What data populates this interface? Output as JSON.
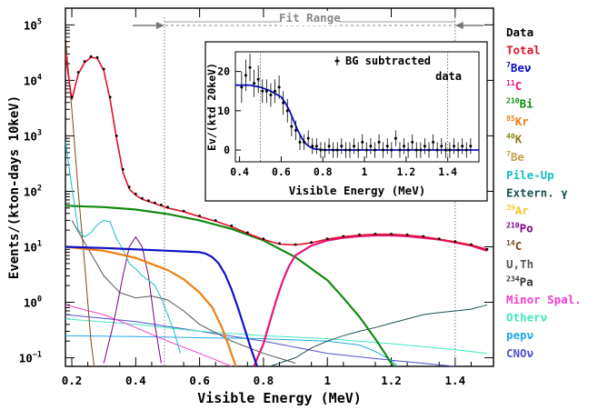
{
  "chart_data": [
    {
      "type": "line",
      "title": "",
      "xlabel": "Visible Energy (MeV)",
      "ylabel": "Events/(kton-days 10keV)",
      "xlim": [
        0.18,
        1.52
      ],
      "ylim": [
        0.07,
        200000
      ],
      "y_scale": "log",
      "grid": false,
      "legend_position": "right-outside",
      "x_ticks": [
        {
          "v": 0.2,
          "t": "0.2"
        },
        {
          "v": 0.4,
          "t": "0.4"
        },
        {
          "v": 0.6,
          "t": "0.6"
        },
        {
          "v": 0.8,
          "t": "0.8"
        },
        {
          "v": 1.0,
          "t": "1"
        },
        {
          "v": 1.2,
          "t": "1.2"
        },
        {
          "v": 1.4,
          "t": "1.4"
        }
      ],
      "y_ticks": [
        {
          "v": 0.1,
          "b": "10",
          "e": "−1"
        },
        {
          "v": 1,
          "b": "10",
          "e": "0"
        },
        {
          "v": 10,
          "b": "10",
          "e": "1"
        },
        {
          "v": 100,
          "b": "10",
          "e": "2"
        },
        {
          "v": 1000,
          "b": "10",
          "e": "3"
        },
        {
          "v": 10000,
          "b": "10",
          "e": "4"
        },
        {
          "v": 100000,
          "b": "10",
          "e": "5"
        }
      ],
      "annotations": [
        {
          "text": "Fit Range",
          "x_range": [
            0.49,
            1.4
          ]
        }
      ],
      "series": [
        {
          "name": "Data",
          "color": "#000000",
          "kind": "points",
          "x": [
            0.18,
            0.2,
            0.22,
            0.24,
            0.26,
            0.28,
            0.3,
            0.32,
            0.34,
            0.36,
            0.38,
            0.4,
            0.42,
            0.44,
            0.46,
            0.48,
            0.5,
            0.55,
            0.6,
            0.65,
            0.7,
            0.75,
            0.8,
            0.85,
            0.9,
            0.95,
            1.0,
            1.05,
            1.1,
            1.15,
            1.2,
            1.25,
            1.3,
            1.35,
            1.4,
            1.45,
            1.5
          ],
          "y": [
            50000,
            5000,
            14000,
            22000,
            27000,
            26000,
            16000,
            5000,
            1000,
            250,
            120,
            90,
            75,
            68,
            62,
            57,
            52,
            44,
            36,
            30,
            24,
            18,
            14,
            11.5,
            11,
            12,
            14,
            15.5,
            16.5,
            17,
            17,
            16.5,
            15.5,
            14,
            12.5,
            11,
            9
          ]
        },
        {
          "name": "Total",
          "color": "#e0102a",
          "kind": "line",
          "x": [
            0.18,
            0.2,
            0.22,
            0.24,
            0.26,
            0.28,
            0.3,
            0.32,
            0.34,
            0.36,
            0.38,
            0.4,
            0.42,
            0.44,
            0.46,
            0.48,
            0.5,
            0.55,
            0.6,
            0.65,
            0.7,
            0.75,
            0.8,
            0.85,
            0.9,
            0.95,
            1.0,
            1.05,
            1.1,
            1.15,
            1.2,
            1.25,
            1.3,
            1.35,
            1.4,
            1.45,
            1.5
          ],
          "y": [
            30000,
            4500,
            13000,
            21000,
            26000,
            25000,
            15000,
            4500,
            900,
            220,
            110,
            85,
            72,
            66,
            60,
            55,
            50,
            43,
            35,
            29,
            23,
            17.5,
            13.5,
            11.2,
            10.8,
            11.8,
            13.8,
            15.2,
            16.2,
            16.8,
            16.8,
            16.2,
            15.2,
            13.8,
            12.3,
            10.8,
            9
          ]
        },
        {
          "name": "<sup>7</sup>Beν",
          "color": "#1010c8",
          "kind": "line",
          "x": [
            0.18,
            0.3,
            0.5,
            0.6,
            0.62,
            0.64,
            0.66,
            0.68,
            0.7,
            0.72,
            0.74,
            0.76,
            0.78
          ],
          "y": [
            10,
            9.5,
            8.5,
            8,
            7.5,
            6.5,
            5,
            3.2,
            1.7,
            0.8,
            0.35,
            0.15,
            0.07
          ]
        },
        {
          "name": "<sup>11</sup>C",
          "color": "#e8147c",
          "kind": "line",
          "x": [
            0.77,
            0.8,
            0.82,
            0.84,
            0.86,
            0.88,
            0.9,
            0.95,
            1.0,
            1.05,
            1.1,
            1.15,
            1.2,
            1.25,
            1.3,
            1.35,
            1.4,
            1.45,
            1.5
          ],
          "y": [
            0.07,
            0.18,
            0.45,
            1.1,
            2.4,
            4.5,
            7,
            10.5,
            13,
            14.5,
            15.5,
            16,
            16,
            15.5,
            14.5,
            13.5,
            12,
            10.5,
            8.5
          ]
        },
        {
          "name": "<sup>210</sup>Bi",
          "color": "#108a10",
          "kind": "line",
          "x": [
            0.18,
            0.3,
            0.4,
            0.5,
            0.6,
            0.7,
            0.8,
            0.9,
            1.0,
            1.05,
            1.1,
            1.15,
            1.18,
            1.2,
            1.22
          ],
          "y": [
            55,
            52,
            47,
            39,
            30,
            21,
            13,
            6.5,
            2.5,
            1.2,
            0.55,
            0.22,
            0.12,
            0.08,
            0.06
          ]
        },
        {
          "name": "<sup>85</sup>Kr",
          "color": "#f07e10",
          "kind": "line",
          "x": [
            0.18,
            0.3,
            0.4,
            0.5,
            0.55,
            0.6,
            0.64,
            0.67,
            0.69,
            0.71,
            0.72
          ],
          "y": [
            10,
            8.5,
            6.3,
            3.8,
            2.6,
            1.5,
            0.8,
            0.35,
            0.17,
            0.08,
            0.06
          ]
        },
        {
          "name": "<sup>40</sup>K",
          "color": "#8c8020",
          "kind": "line",
          "x": [],
          "y": []
        },
        {
          "name": "<sup>7</sup>Be",
          "color": "#c8a050",
          "kind": "line",
          "x": [],
          "y": []
        },
        {
          "name": "Pile-Up",
          "color": "#18c0c0",
          "kind": "line",
          "x": [
            0.18,
            0.2,
            0.22,
            0.24,
            0.26,
            0.28,
            0.3,
            0.32,
            0.34,
            0.36,
            0.38,
            0.4,
            0.42,
            0.44,
            0.46,
            0.48,
            0.5,
            0.52,
            0.54
          ],
          "y": [
            800,
            120,
            20,
            15,
            18,
            25,
            30,
            28,
            14,
            9,
            5,
            4,
            3,
            2.5,
            2,
            1.2,
            0.6,
            0.3,
            0.12
          ]
        },
        {
          "name": "Extern. γ",
          "color": "#1c5050",
          "kind": "line",
          "x": [
            0.82,
            0.9,
            0.95,
            1.0,
            1.05,
            1.1,
            1.15,
            1.2,
            1.25,
            1.3,
            1.35,
            1.4,
            1.45,
            1.5
          ],
          "y": [
            0.07,
            0.1,
            0.15,
            0.2,
            0.25,
            0.3,
            0.35,
            0.42,
            0.5,
            0.6,
            0.65,
            0.7,
            0.75,
            0.9
          ]
        },
        {
          "name": "<sup>39</sup>Ar",
          "color": "#f8c830",
          "kind": "line",
          "x": [],
          "y": []
        },
        {
          "name": "<sup>210</sup>Po",
          "color": "#7a0080",
          "kind": "line",
          "x": [
            0.3,
            0.33,
            0.36,
            0.38,
            0.4,
            0.42,
            0.44,
            0.46,
            0.48
          ],
          "y": [
            0.08,
            0.4,
            3,
            10,
            15,
            10,
            3,
            0.4,
            0.08
          ]
        },
        {
          "name": "<sup>14</sup>C",
          "color": "#7a4818",
          "kind": "line",
          "x": [
            0.18,
            0.2,
            0.22,
            0.24,
            0.26,
            0.27
          ],
          "y": [
            60000,
            3000,
            100,
            5,
            0.2,
            0.07
          ]
        },
        {
          "name": "U,Th",
          "color": "#555555",
          "kind": "line",
          "x": [
            0.2,
            0.3,
            0.35,
            0.4,
            0.45,
            0.5,
            0.55,
            0.6,
            0.7,
            0.8,
            0.9
          ],
          "y": [
            30,
            3,
            1.5,
            1.2,
            1.3,
            1.1,
            0.7,
            0.4,
            0.2,
            0.12,
            0.08
          ]
        },
        {
          "name": "<sup>234</sup>Pa",
          "color": "#333333",
          "kind": "line",
          "x": [],
          "y": []
        },
        {
          "name": "Minor Spal.",
          "color": "#f040d0",
          "kind": "line",
          "x": [
            0.18,
            0.3,
            0.4,
            0.5,
            0.6,
            0.7
          ],
          "y": [
            0.9,
            0.6,
            0.35,
            0.2,
            0.12,
            0.07
          ]
        },
        {
          "name": "Otherν",
          "color": "#40e8c0",
          "kind": "line",
          "x": [
            0.18,
            0.4,
            0.6,
            0.8,
            1.0,
            1.2,
            1.4,
            1.5
          ],
          "y": [
            0.5,
            0.4,
            0.3,
            0.25,
            0.22,
            0.18,
            0.14,
            0.12
          ]
        },
        {
          "name": "pepν",
          "color": "#20a8e8",
          "kind": "line",
          "x": [
            0.18,
            0.4,
            0.6,
            0.8,
            1.0,
            1.1,
            1.15,
            1.2,
            1.22
          ],
          "y": [
            0.25,
            0.24,
            0.23,
            0.22,
            0.2,
            0.17,
            0.13,
            0.09,
            0.07
          ]
        },
        {
          "name": "CNOν",
          "color": "#5050d0",
          "kind": "line",
          "x": [
            0.18,
            0.4,
            0.6,
            0.8,
            1.0,
            1.2,
            1.4
          ],
          "y": [
            0.6,
            0.45,
            0.3,
            0.2,
            0.12,
            0.09,
            0.07
          ]
        }
      ]
    },
    {
      "type": "scatter",
      "title": "",
      "xlabel": "Visible Energy (MeV)",
      "ylabel": "Ev/(ktd 20keV)",
      "xlim": [
        0.38,
        1.55
      ],
      "ylim": [
        -3,
        25
      ],
      "grid": false,
      "legend_position": "top-right",
      "legend_text": [
        "BG subtracted",
        "data"
      ],
      "x_ticks": [
        {
          "v": 0.4,
          "t": "0.4"
        },
        {
          "v": 0.6,
          "t": "0.6"
        },
        {
          "v": 0.8,
          "t": "0.8"
        },
        {
          "v": 1.0,
          "t": "1"
        },
        {
          "v": 1.2,
          "t": "1.2"
        },
        {
          "v": 1.4,
          "t": "1.4"
        }
      ],
      "y_ticks": [
        {
          "v": 0,
          "t": "0"
        },
        {
          "v": 10,
          "t": "10"
        },
        {
          "v": 20,
          "t": "20"
        }
      ],
      "series": [
        {
          "name": "BG subtracted data",
          "color": "#000000",
          "kind": "errorbar_points",
          "x": [
            0.41,
            0.43,
            0.45,
            0.47,
            0.49,
            0.51,
            0.53,
            0.55,
            0.57,
            0.59,
            0.61,
            0.63,
            0.65,
            0.67,
            0.69,
            0.71,
            0.73,
            0.75,
            0.77,
            0.79,
            0.81,
            0.83,
            0.85,
            0.87,
            0.89,
            0.91,
            0.93,
            0.95,
            0.97,
            0.99,
            1.01,
            1.03,
            1.05,
            1.07,
            1.09,
            1.11,
            1.13,
            1.15,
            1.17,
            1.19,
            1.21,
            1.23,
            1.25,
            1.27,
            1.29,
            1.31,
            1.33,
            1.35,
            1.37,
            1.39,
            1.41,
            1.43,
            1.45,
            1.47,
            1.49,
            1.51
          ],
          "y": [
            16,
            19,
            21,
            17,
            18,
            15,
            15,
            14,
            15,
            16,
            12,
            10,
            6,
            5,
            2,
            2,
            3,
            1,
            1,
            0,
            0,
            1,
            0,
            0,
            1,
            0,
            0,
            1,
            0,
            2,
            0,
            1,
            0,
            2,
            0,
            1,
            0,
            3,
            0,
            1,
            0,
            2,
            0,
            0,
            1,
            0,
            2,
            0,
            1,
            0,
            0,
            1,
            0,
            1,
            0,
            1
          ],
          "err": [
            4,
            4,
            3.5,
            3.5,
            3.5,
            3,
            3,
            3,
            3,
            3,
            3,
            3,
            2.5,
            2.5,
            2,
            2,
            2,
            2,
            2,
            2,
            2,
            2,
            2,
            2,
            2,
            2,
            2,
            2,
            2,
            2,
            2,
            2,
            2,
            2,
            2,
            2,
            2,
            2,
            2,
            2,
            2,
            2,
            2,
            2,
            2,
            2,
            2,
            2,
            2,
            2,
            2,
            2,
            2,
            2,
            2,
            2
          ]
        },
        {
          "name": "fit",
          "color": "#1010c8",
          "kind": "line",
          "x": [
            0.38,
            0.45,
            0.5,
            0.55,
            0.6,
            0.62,
            0.64,
            0.66,
            0.68,
            0.7,
            0.72,
            0.74,
            0.76,
            0.8,
            0.9,
            1.0,
            1.2,
            1.4,
            1.55
          ],
          "y": [
            16.5,
            16.5,
            16,
            15,
            13.5,
            12,
            10,
            7.5,
            5,
            3,
            1.5,
            0.7,
            0.3,
            0.05,
            0,
            0,
            0,
            0,
            0
          ]
        }
      ]
    }
  ]
}
